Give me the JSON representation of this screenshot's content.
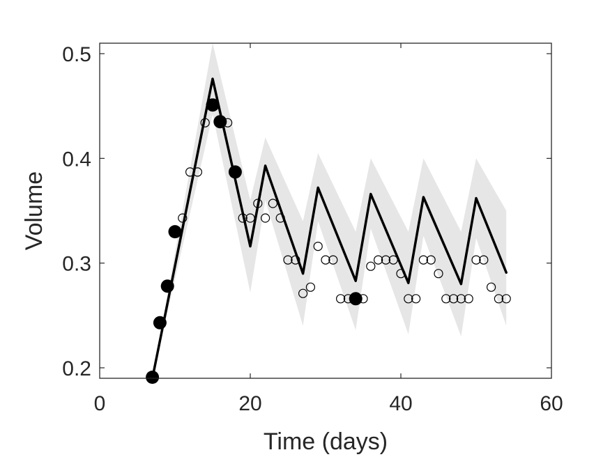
{
  "chart_data": {
    "type": "line",
    "xlabel": "Time (days)",
    "ylabel": "Volume",
    "xlim": [
      0,
      60
    ],
    "ylim": [
      0.19,
      0.51
    ],
    "xticks": [
      0,
      20,
      40,
      60
    ],
    "yticks": [
      0.2,
      0.3,
      0.4,
      0.5
    ],
    "xtick_labels": [
      "0",
      "20",
      "40",
      "60"
    ],
    "ytick_labels": [
      "0.2",
      "0.3",
      "0.4",
      "0.5"
    ],
    "grid": false,
    "colors": {
      "line": "#000000",
      "band": "#e6e6e6",
      "frame": "#262626"
    },
    "series": [
      {
        "role": "model-fit",
        "style": "line",
        "x": [
          7,
          15,
          20,
          22,
          27,
          29,
          34,
          36,
          41,
          43,
          48,
          50,
          54
        ],
        "y": [
          0.19,
          0.476,
          0.316,
          0.393,
          0.29,
          0.372,
          0.283,
          0.366,
          0.281,
          0.363,
          0.28,
          0.362,
          0.291
        ]
      },
      {
        "role": "uncertainty-band",
        "style": "band",
        "x": [
          7,
          15,
          20,
          22,
          27,
          29,
          34,
          36,
          41,
          43,
          48,
          50,
          54
        ],
        "upper": [
          0.19,
          0.51,
          0.36,
          0.42,
          0.34,
          0.405,
          0.33,
          0.4,
          0.33,
          0.4,
          0.33,
          0.4,
          0.35
        ],
        "lower": [
          0.19,
          0.442,
          0.272,
          0.36,
          0.24,
          0.34,
          0.236,
          0.333,
          0.232,
          0.326,
          0.23,
          0.324,
          0.24
        ]
      },
      {
        "role": "training-observations",
        "style": "filled-markers",
        "x": [
          7,
          8,
          9,
          10,
          15,
          16,
          18,
          34
        ],
        "y": [
          0.191,
          0.243,
          0.278,
          0.33,
          0.451,
          0.435,
          0.387,
          0.266
        ]
      },
      {
        "role": "validation-observations",
        "style": "open-markers",
        "x": [
          11,
          12,
          13,
          14,
          17,
          19,
          20,
          21,
          22,
          23,
          24,
          25,
          26,
          27,
          28,
          29,
          30,
          31,
          32,
          33,
          35,
          36,
          37,
          38,
          39,
          40,
          41,
          42,
          43,
          44,
          45,
          46,
          47,
          48,
          49,
          50,
          51,
          52,
          53,
          54
        ],
        "y": [
          0.343,
          0.387,
          0.387,
          0.434,
          0.434,
          0.343,
          0.343,
          0.357,
          0.343,
          0.357,
          0.343,
          0.303,
          0.303,
          0.271,
          0.277,
          0.316,
          0.303,
          0.303,
          0.266,
          0.266,
          0.266,
          0.297,
          0.303,
          0.303,
          0.303,
          0.29,
          0.266,
          0.266,
          0.303,
          0.303,
          0.29,
          0.266,
          0.266,
          0.266,
          0.266,
          0.303,
          0.303,
          0.277,
          0.266,
          0.266
        ]
      }
    ]
  }
}
